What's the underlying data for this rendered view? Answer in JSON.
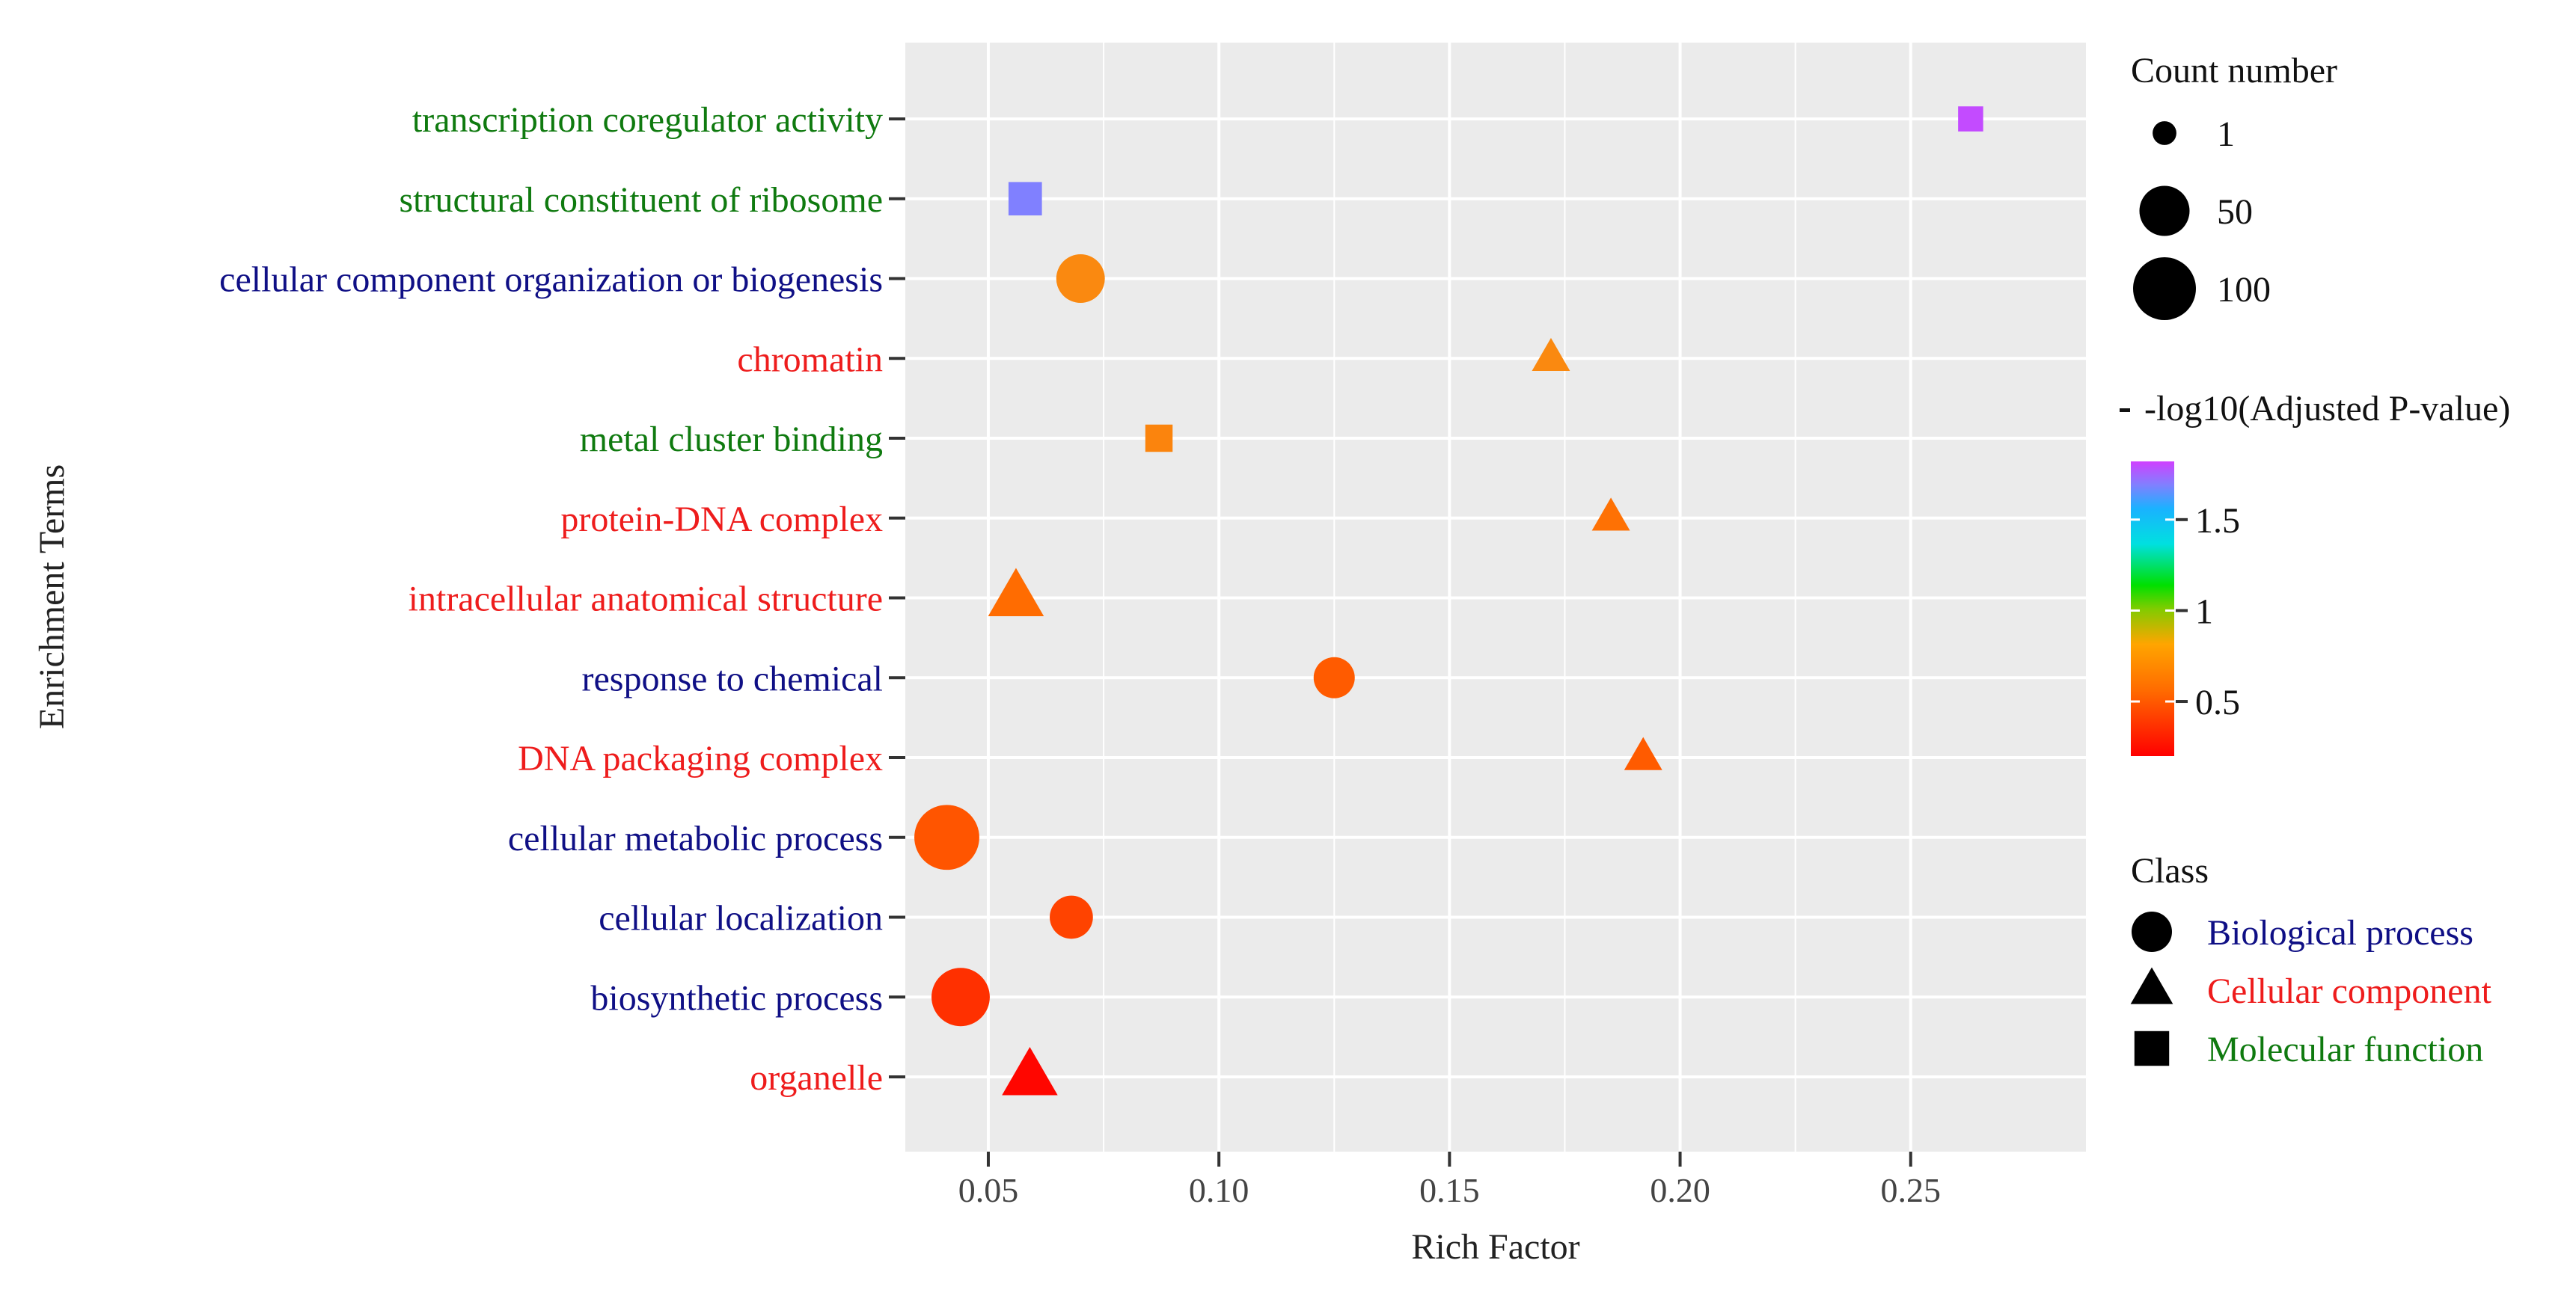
{
  "chart_data": {
    "type": "scatter",
    "title": "",
    "xlabel": "Rich Factor",
    "ylabel": "Enrichment Terms",
    "xlim": [
      0.032,
      0.288
    ],
    "xticks": [
      0.05,
      0.1,
      0.15,
      0.2,
      0.25
    ],
    "xtick_labels": [
      "0.05",
      "0.10",
      "0.15",
      "0.20",
      "0.25"
    ],
    "grid": true,
    "categories": [
      "transcription coregulator activity",
      "structural constituent of ribosome",
      "cellular component organization or biogenesis",
      "chromatin",
      "metal cluster binding",
      "protein-DNA complex",
      "intracellular anatomical structure",
      "response to chemical",
      "DNA packaging complex",
      "cellular metabolic process",
      "cellular localization",
      "biosynthetic process",
      "organelle"
    ],
    "points": [
      {
        "term": "transcription coregulator activity",
        "rich_factor": 0.263,
        "count": 5,
        "neg_log10_padj": 1.8,
        "class": "Molecular function"
      },
      {
        "term": "structural constituent of ribosome",
        "rich_factor": 0.058,
        "count": 20,
        "neg_log10_padj": 1.7,
        "class": "Molecular function"
      },
      {
        "term": "cellular component organization or biogenesis",
        "rich_factor": 0.07,
        "count": 45,
        "neg_log10_padj": 0.68,
        "class": "Biological process"
      },
      {
        "term": "chromatin",
        "rich_factor": 0.172,
        "count": 15,
        "neg_log10_padj": 0.68,
        "class": "Cellular component"
      },
      {
        "term": "metal cluster binding",
        "rich_factor": 0.087,
        "count": 8,
        "neg_log10_padj": 0.66,
        "class": "Molecular function"
      },
      {
        "term": "protein-DNA complex",
        "rich_factor": 0.185,
        "count": 15,
        "neg_log10_padj": 0.58,
        "class": "Cellular component"
      },
      {
        "term": "intracellular anatomical structure",
        "rich_factor": 0.056,
        "count": 60,
        "neg_log10_padj": 0.56,
        "class": "Cellular component"
      },
      {
        "term": "response to chemical",
        "rich_factor": 0.125,
        "count": 25,
        "neg_log10_padj": 0.5,
        "class": "Biological process"
      },
      {
        "term": "DNA packaging complex",
        "rich_factor": 0.192,
        "count": 15,
        "neg_log10_padj": 0.5,
        "class": "Cellular component"
      },
      {
        "term": "cellular metabolic process",
        "rich_factor": 0.041,
        "count": 110,
        "neg_log10_padj": 0.48,
        "class": "Biological process"
      },
      {
        "term": "cellular localization",
        "rich_factor": 0.068,
        "count": 30,
        "neg_log10_padj": 0.42,
        "class": "Biological process"
      },
      {
        "term": "biosynthetic process",
        "rich_factor": 0.044,
        "count": 80,
        "neg_log10_padj": 0.36,
        "class": "Biological process"
      },
      {
        "term": "organelle",
        "rich_factor": 0.059,
        "count": 60,
        "neg_log10_padj": 0.22,
        "class": "Cellular component"
      }
    ],
    "size_legend": {
      "title": "Count number",
      "entries": [
        {
          "label": "1",
          "value": 1
        },
        {
          "label": "50",
          "value": 50
        },
        {
          "label": "100",
          "value": 100
        }
      ]
    },
    "color_legend": {
      "title": "-log10(Adjusted P-value)",
      "range": [
        0.2,
        1.82
      ],
      "ticks": [
        {
          "label": "0.5",
          "value": 0.5
        },
        {
          "label": "1",
          "value": 1.0
        },
        {
          "label": "1.5",
          "value": 1.5
        }
      ]
    },
    "class_legend": {
      "title": "Class",
      "entries": [
        {
          "label": "Biological process",
          "shape": "circle",
          "color": "#0f0f85"
        },
        {
          "label": "Cellular component",
          "shape": "triangle",
          "color": "#ee1c1c"
        },
        {
          "label": "Molecular function",
          "shape": "square",
          "color": "#0f7a0f"
        }
      ]
    },
    "colors": {
      "panel_background": "#ebebeb",
      "grid": "#ffffff",
      "biological_process": "#0f0f85",
      "cellular_component": "#ee1c1c",
      "molecular_function": "#0f7a0f"
    }
  }
}
